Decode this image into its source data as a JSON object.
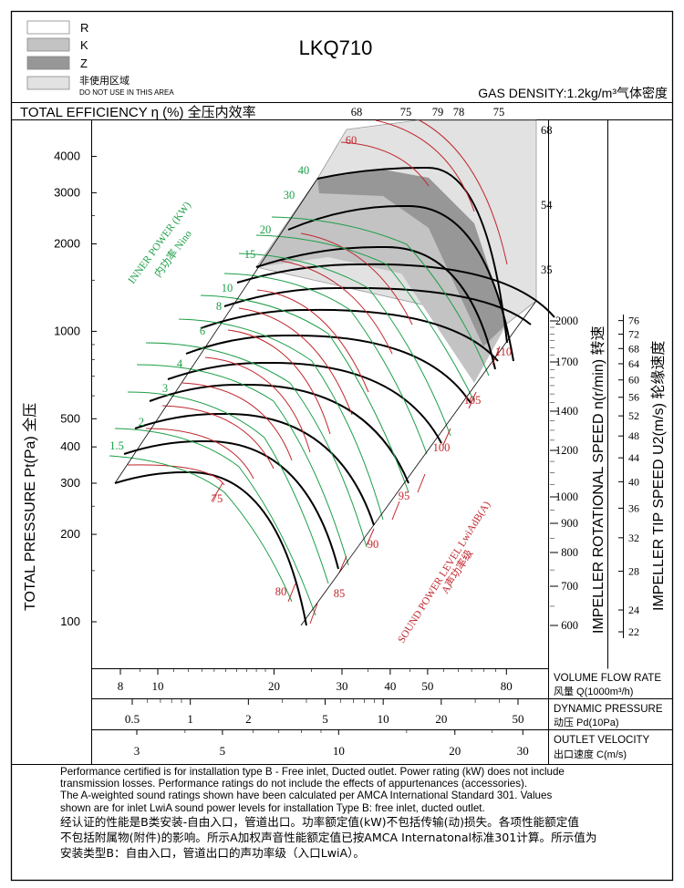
{
  "legend": {
    "items": [
      {
        "label": "R",
        "color": "#ffffff"
      },
      {
        "label": "K",
        "color": "#c3c3c3"
      },
      {
        "label": "Z",
        "color": "#979797"
      },
      {
        "label": "非使用区域",
        "label2": "DO NOT USE IN THIS AREA",
        "color": "#e2e2e2"
      }
    ]
  },
  "header": {
    "model": "LKQ710",
    "gas_density": "GAS DENSITY:1.2kg/m³气体密度",
    "total_efficiency": "TOTAL EFFICIENCY η (%) 全压内效率"
  },
  "colors": {
    "efficiency": "#c0272d",
    "power": "#1e9e48",
    "speed": "#000000",
    "region_k": "#c3c3c3",
    "region_z": "#979797",
    "region_nouse": "#e2e2e2"
  },
  "chart_data": {
    "type": "fan performance chart (log-log)",
    "title": "LKQ710",
    "ylabel": "TOTAL PRESSURE Pt(Pa) 全压",
    "y_scale": "log",
    "ylim": [
      80,
      5000
    ],
    "xlim": [
      7,
      90
    ],
    "pressure_ticks": [
      100,
      200,
      300,
      400,
      500,
      1000,
      2000,
      3000,
      4000
    ],
    "volume_flow": {
      "label": "VOLUME FLOW RATE",
      "label_cn": "风量 Q(1000m³/h)",
      "ticks": [
        8,
        10,
        20,
        30,
        40,
        50,
        80
      ]
    },
    "dynamic_pressure": {
      "label": "DYNAMIC PRESSURE",
      "label_cn": "动压 Pd(10Pa)",
      "ticks": [
        0.5,
        1,
        2,
        5,
        10,
        20,
        50
      ]
    },
    "outlet_velocity": {
      "label": "OUTLET VELOCITY",
      "label_cn": "出口速度 C(m/s)",
      "ticks": [
        3,
        5,
        10,
        20,
        30
      ]
    },
    "impeller_speed": {
      "label": "IMPELLER ROTATIONAL SPEED n(r/min) 转速",
      "ticks": [
        600,
        700,
        800,
        900,
        1000,
        1200,
        1400,
        1700,
        2000
      ]
    },
    "tip_speed": {
      "label": "IMPELLER TIP SPEED U2(m/s) 轮缘速度",
      "ticks": [
        22,
        24,
        28,
        32,
        36,
        40,
        44,
        48,
        52,
        56,
        60,
        64,
        68,
        72,
        76
      ]
    },
    "efficiency_labels": {
      "top": [
        68,
        75,
        79,
        78,
        75
      ],
      "inside": [
        60,
        75
      ],
      "right": [
        68,
        54,
        35
      ]
    },
    "sound_power": {
      "label": "SOUND POWER LEVEL LwiAdB(A)",
      "label_cn": "A声功率级",
      "values": [
        75,
        80,
        85,
        90,
        95,
        100,
        105,
        110
      ]
    },
    "inner_power": {
      "label": "INNER POWER (KW)",
      "label_cn": "内功率 Nino",
      "values": [
        1.5,
        2,
        3,
        4,
        6,
        8,
        10,
        15,
        20,
        30,
        40
      ]
    }
  },
  "notes": [
    "Performance certified is for installation type B - Free inlet, Ducted outlet. Power rating (kW) does not include",
    "transmission losses. Performance ratings do not include the effects of appurtenances (accessories).",
    "The A-weighted sound ratings shown have been calculated per AMCA International Standard 301. Values",
    "shown are for inlet LwiA sound power levels for installation Type B: free inlet, ducted outlet."
  ],
  "notes_cn": [
    "经认证的性能是B类安装-自由入口，管道出口。功率额定值(kW)不包括传输(动)损失。各项性能额定值",
    "不包括附属物(附件)的影响。所示A加权声音性能额定值已按AMCA Internatonal标准301计算。所示值为",
    "安装类型B：自由入口，管道出口的声功率级（入口LwiA）。"
  ]
}
